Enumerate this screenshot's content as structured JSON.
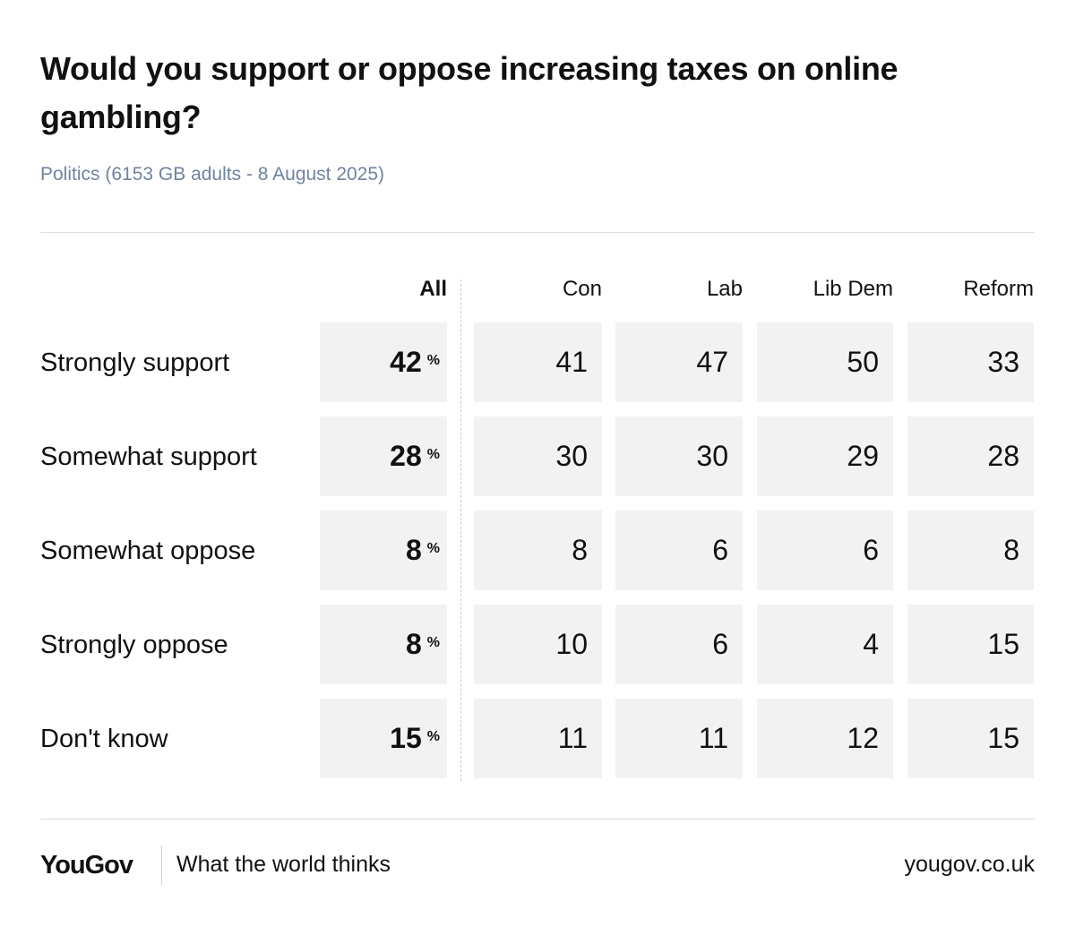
{
  "chart_data": {
    "type": "table",
    "title": "Would you support or oppose increasing taxes on online gambling?",
    "subtitle": "Politics (6153 GB adults - 8 August 2025)",
    "columns": [
      "All",
      "Con",
      "Lab",
      "Lib Dem",
      "Reform"
    ],
    "unit_symbol": "%",
    "rows": [
      {
        "label": "Strongly support",
        "all": 42,
        "values": [
          41,
          47,
          50,
          33
        ]
      },
      {
        "label": "Somewhat support",
        "all": 28,
        "values": [
          30,
          30,
          29,
          28
        ]
      },
      {
        "label": "Somewhat oppose",
        "all": 8,
        "values": [
          8,
          6,
          6,
          8
        ]
      },
      {
        "label": "Strongly oppose",
        "all": 8,
        "values": [
          10,
          6,
          4,
          15
        ]
      },
      {
        "label": "Don't know",
        "all": 15,
        "values": [
          11,
          11,
          12,
          15
        ]
      }
    ]
  },
  "footer": {
    "logo": "YouGov",
    "tagline": "What the world thinks",
    "website": "yougov.co.uk"
  },
  "colors": {
    "cell_background": "#f2f2f2",
    "subtitle": "#7083a0",
    "text": "#111111"
  }
}
